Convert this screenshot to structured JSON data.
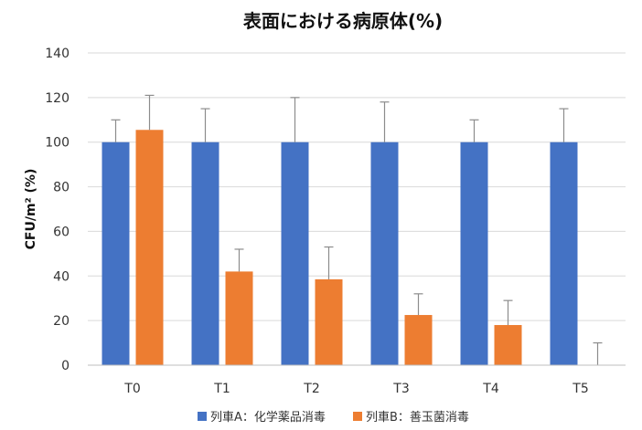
{
  "chart_data": {
    "type": "bar",
    "title": "表面における病原体(%)",
    "ylabel": "CFU/m² (%)",
    "xlabel": "",
    "categories": [
      "T0",
      "T1",
      "T2",
      "T3",
      "T4",
      "T5"
    ],
    "ylim": [
      0,
      140
    ],
    "yticks": [
      0,
      20,
      40,
      60,
      80,
      100,
      120,
      140
    ],
    "grid": true,
    "legend_position": "bottom",
    "series": [
      {
        "name": "列車A：化学薬品消毒",
        "color": "#4472C4",
        "values": [
          100,
          100,
          100,
          100,
          100,
          100
        ],
        "error_upper": [
          110,
          115,
          120,
          118,
          110,
          115
        ]
      },
      {
        "name": "列車B：善玉菌消毒",
        "color": "#ED7D31",
        "values": [
          105.5,
          42,
          38.5,
          22.5,
          18,
          0
        ],
        "error_upper": [
          121,
          52,
          53,
          32,
          29,
          10
        ]
      }
    ]
  }
}
